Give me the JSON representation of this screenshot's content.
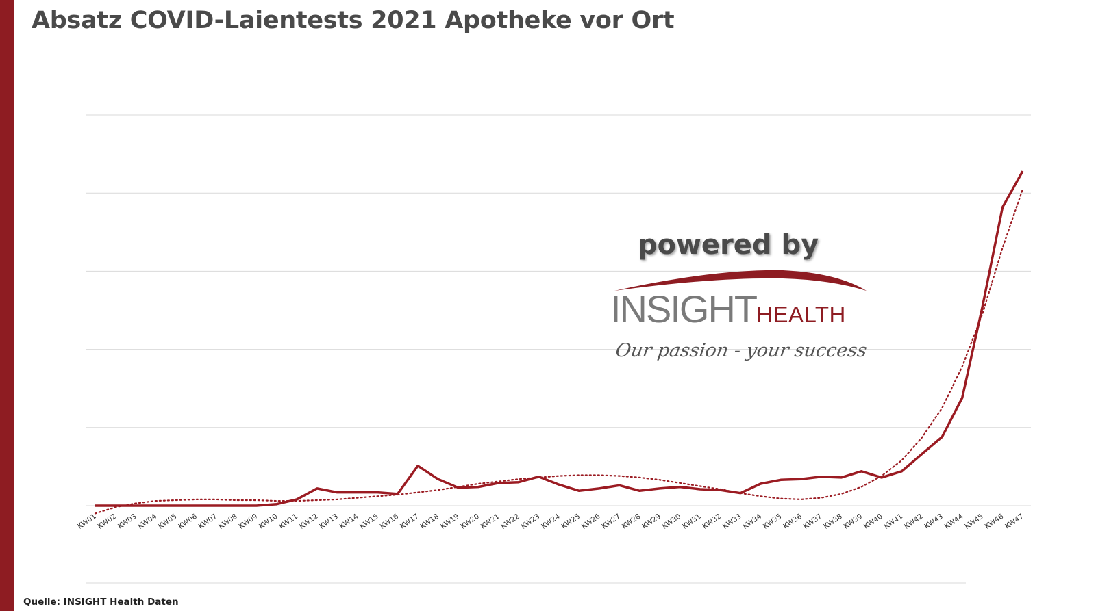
{
  "title": "Absatz COVID-Laientests 2021 Apotheke vor Ort",
  "source": "Quelle: INSIGHT Health Daten",
  "logo": {
    "powered": "powered by",
    "brand_main": "INSIGHT",
    "brand_sub": "HEALTH",
    "tagline": "Our passion - your success"
  },
  "colors": {
    "accent": "#8e1c22",
    "line": "#9b1b22",
    "grid": "#d9d9d9",
    "title": "#4a4a4a"
  },
  "chart_data": {
    "type": "line",
    "title": "",
    "xlabel": "",
    "ylabel": "",
    "y_tick_labels_shown": false,
    "ylim": [
      0,
      5
    ],
    "grid": true,
    "legend": "none",
    "categories": [
      "KW01",
      "KW02",
      "KW03",
      "KW04",
      "KW05",
      "KW06",
      "KW07",
      "KW08",
      "KW09",
      "KW10",
      "KW11",
      "KW12",
      "KW13",
      "KW14",
      "KW15",
      "KW16",
      "KW17",
      "KW18",
      "KW19",
      "KW20",
      "KW21",
      "KW22",
      "KW23",
      "KW24",
      "KW25",
      "KW26",
      "KW27",
      "KW28",
      "KW29",
      "KW30",
      "KW31",
      "KW32",
      "KW33",
      "KW34",
      "KW35",
      "KW36",
      "KW37",
      "KW38",
      "KW39",
      "KW40",
      "KW41",
      "KW42",
      "KW43",
      "KW44",
      "KW45",
      "KW46",
      "KW47"
    ],
    "series": [
      {
        "style": "solid",
        "values": [
          0,
          0,
          0,
          0,
          0,
          0,
          0,
          0,
          0,
          0.02,
          0.08,
          0.22,
          0.17,
          0.17,
          0.17,
          0.15,
          0.51,
          0.34,
          0.23,
          0.24,
          0.29,
          0.3,
          0.37,
          0.27,
          0.19,
          0.22,
          0.26,
          0.19,
          0.22,
          0.24,
          0.21,
          0.2,
          0.16,
          0.28,
          0.33,
          0.34,
          0.37,
          0.36,
          0.44,
          0.36,
          0.44,
          0.66,
          0.88,
          1.38,
          2.54,
          3.82,
          4.28
        ]
      },
      {
        "style": "dotted",
        "type": "trendline",
        "values": [
          -0.1,
          -0.02,
          0.03,
          0.06,
          0.07,
          0.08,
          0.08,
          0.07,
          0.07,
          0.06,
          0.06,
          0.07,
          0.08,
          0.1,
          0.12,
          0.14,
          0.17,
          0.2,
          0.24,
          0.28,
          0.31,
          0.34,
          0.36,
          0.38,
          0.39,
          0.39,
          0.38,
          0.36,
          0.33,
          0.29,
          0.25,
          0.21,
          0.16,
          0.12,
          0.09,
          0.08,
          0.1,
          0.15,
          0.24,
          0.38,
          0.58,
          0.87,
          1.25,
          1.78,
          2.45,
          3.3,
          4.05
        ]
      }
    ]
  }
}
